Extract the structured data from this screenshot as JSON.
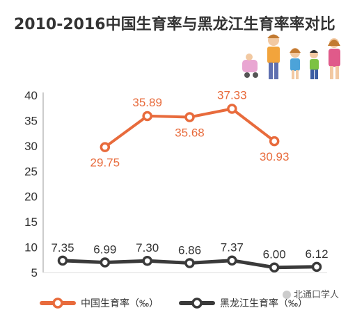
{
  "chart_data": {
    "type": "line",
    "title": "2010-2016中国生育率与黑龙江生育率率对比",
    "ylim": [
      5,
      40
    ],
    "yticks": [
      5,
      10,
      15,
      20,
      25,
      30,
      35,
      40
    ],
    "grid": false,
    "legend_position": "bottom",
    "series": [
      {
        "name": "中国生育率（‰）",
        "color": "#e86b3c",
        "values": [
          null,
          29.75,
          35.89,
          35.68,
          37.33,
          30.93,
          null
        ],
        "labels": [
          "",
          "29.75",
          "35.89",
          "35.68",
          "37.33",
          "30.93",
          ""
        ]
      },
      {
        "name": "黑龙江生育率（‰）",
        "color": "#3a3a3a",
        "values": [
          7.35,
          6.99,
          7.3,
          6.86,
          7.37,
          6.0,
          6.12
        ],
        "labels": [
          "7.35",
          "6.99",
          "7.30",
          "6.86",
          "7.37",
          "6.00",
          "6.12"
        ]
      }
    ],
    "watermark": "北通口学人",
    "decoration_icon": "family-illustration-icon"
  }
}
